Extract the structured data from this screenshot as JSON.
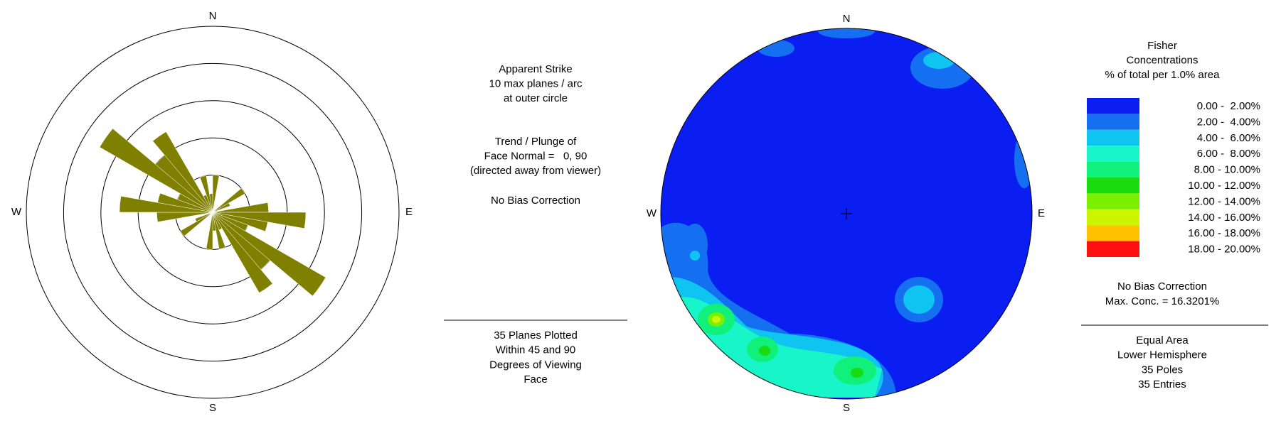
{
  "chart_data": [
    {
      "type": "rose",
      "compass": [
        "N",
        "E",
        "S",
        "W"
      ],
      "color": "#808000",
      "x": [
        0,
        10,
        20,
        30,
        40,
        50,
        60,
        70,
        80,
        90,
        100,
        110,
        120,
        130,
        140,
        150,
        160,
        170,
        180,
        190,
        200,
        210,
        220,
        230,
        240,
        250,
        260,
        270,
        280,
        290,
        300,
        310,
        320,
        330,
        340,
        350
      ],
      "values": [
        2,
        0,
        0,
        0,
        0,
        2,
        1,
        0,
        3,
        5,
        3,
        2,
        7,
        4,
        5,
        1,
        2,
        1,
        2,
        0,
        0,
        0,
        0,
        2,
        1,
        0,
        3,
        5,
        3,
        2,
        7,
        4,
        5,
        1,
        2,
        1
      ],
      "rlim": [
        0,
        10
      ],
      "rticks": [
        2,
        4,
        6,
        8,
        10
      ],
      "grid": true
    },
    {
      "type": "contour",
      "compass": [
        "N",
        "E",
        "S",
        "W"
      ],
      "legend": {
        "title": [
          "Fisher",
          "Concentrations",
          "% of total per 1.0% area"
        ],
        "labels": [
          "0.00 -  2.00%",
          "2.00 -  4.00%",
          "4.00 -  6.00%",
          "6.00 -  8.00%",
          "8.00 - 10.00%",
          "10.00 - 12.00%",
          "12.00 - 14.00%",
          "14.00 - 16.00%",
          "16.00 - 18.00%",
          "18.00 - 20.00%"
        ],
        "colors": [
          "#0a1ef2",
          "#1470f0",
          "#10c4f2",
          "#18f5c8",
          "#10f07a",
          "#18dc10",
          "#7af000",
          "#ccf500",
          "#ffc000",
          "#ff1010"
        ]
      },
      "notes": [
        "No Bias Correction",
        "Max. Conc. = 16.3201%"
      ],
      "footer": [
        "Equal Area",
        "Lower Hemisphere",
        "35 Poles",
        "35 Entries"
      ]
    }
  ],
  "info": {
    "header": [
      "Apparent Strike",
      "10 max planes / arc",
      "at outer circle"
    ],
    "face": [
      "Trend / Plunge of",
      "Face Normal =   0, 90",
      "(directed away from viewer)"
    ],
    "bias": "No Bias Correction",
    "footer": [
      "35 Planes Plotted",
      "Within 45 and 90",
      "Degrees of Viewing",
      "Face"
    ]
  }
}
